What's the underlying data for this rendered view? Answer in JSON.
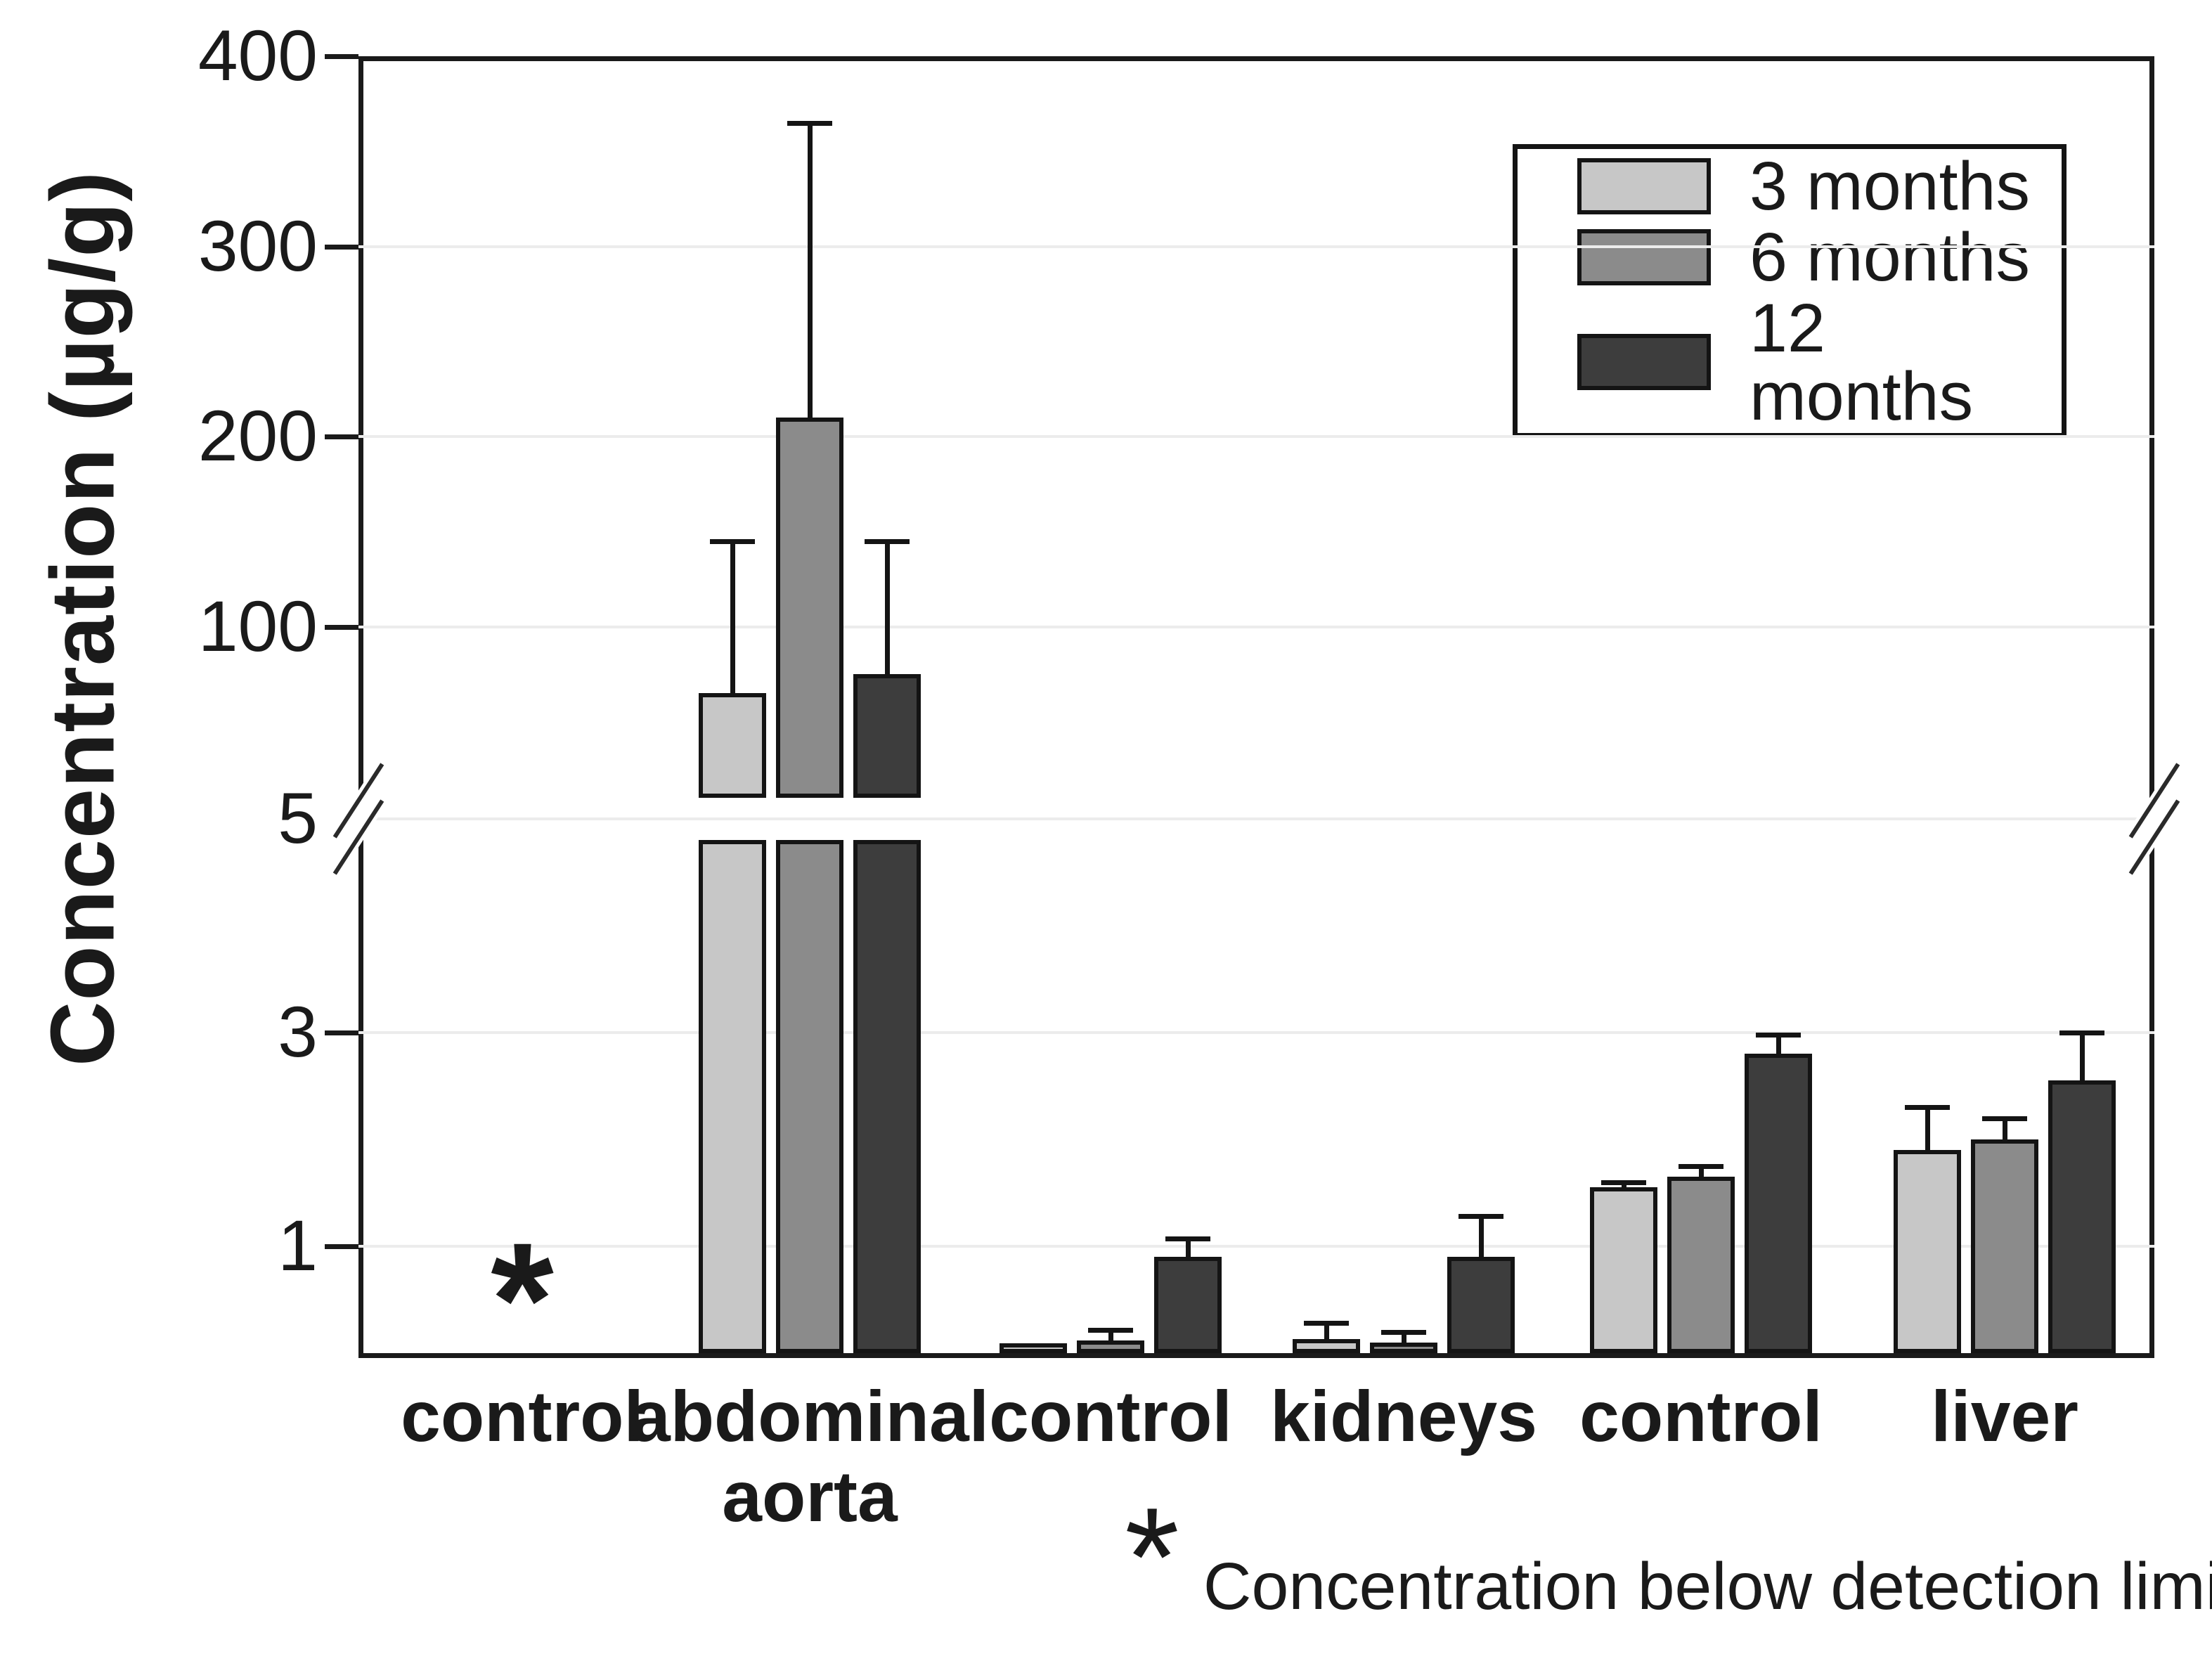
{
  "figure": {
    "background": "#ffffff"
  },
  "y_axis": {
    "title": "Concentration (µg/g)",
    "has_break": true
  },
  "x_axis": {
    "labels": [
      "control",
      "abdominal aorta",
      "control",
      "kidneys",
      "control",
      "liver"
    ]
  },
  "legend": {
    "position": "top-right",
    "items": [
      {
        "label": "3 months",
        "color": "#c7c7c7"
      },
      {
        "label": "6 months",
        "color": "#8b8b8b"
      },
      {
        "label": "12 months",
        "color": "#3d3d3d"
      }
    ]
  },
  "annotations": {
    "below_detection_symbol": "*"
  },
  "footnote": {
    "symbol": "*",
    "text": "Concentration below detection limit"
  },
  "colors": {
    "bar_border": "#141414",
    "frame": "#1a1a1a",
    "gridline": "#ececec",
    "text": "#1a1a1a",
    "background": "#ffffff"
  },
  "chart_data": {
    "type": "bar",
    "title": "",
    "xlabel": "",
    "ylabel": "Concentration (µg/g)",
    "categories": [
      "control",
      "abdominal aorta",
      "control",
      "kidneys",
      "control",
      "liver"
    ],
    "series": [
      {
        "name": "3 months",
        "color": "#c7c7c7",
        "values": [
          null,
          65,
          0.05,
          0.13,
          1.55,
          1.9
        ],
        "errors_plus": [
          null,
          80,
          null,
          0.15,
          0.05,
          0.4
        ]
      },
      {
        "name": "6 months",
        "color": "#8b8b8b",
        "values": [
          null,
          210,
          0.12,
          0.1,
          1.65,
          2.0
        ],
        "errors_plus": [
          null,
          155,
          0.1,
          0.1,
          0.1,
          0.2
        ]
      },
      {
        "name": "12 months",
        "color": "#3d3d3d",
        "values": [
          null,
          75,
          0.9,
          0.9,
          2.8,
          2.55
        ],
        "errors_plus": [
          null,
          70,
          0.17,
          0.38,
          0.18,
          0.45
        ]
      }
    ],
    "below_detection_category_index": 0,
    "axis": {
      "lower_range": [
        0,
        5
      ],
      "lower_ticks": [
        1,
        3,
        5
      ],
      "upper_ticks": [
        100,
        200,
        300,
        400
      ],
      "upper_max": 400,
      "break_after_value": 5,
      "gridlines": true,
      "legend_position": "top-right"
    }
  }
}
